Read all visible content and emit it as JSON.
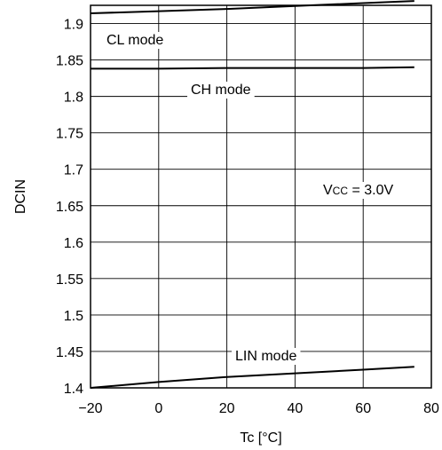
{
  "chart_data": {
    "type": "line",
    "title": "",
    "xlabel": "Tc [°C]",
    "ylabel": "DCIN",
    "xlim": [
      -20,
      80
    ],
    "ylim": [
      1.4,
      1.925
    ],
    "grid": true,
    "x_ticks": [
      -20,
      0,
      20,
      40,
      60,
      80
    ],
    "x_tick_labels": [
      "−20",
      "0",
      "20",
      "40",
      "60",
      "80"
    ],
    "y_ticks": [
      1.4,
      1.45,
      1.5,
      1.55,
      1.6,
      1.65,
      1.7,
      1.75,
      1.8,
      1.85,
      1.9
    ],
    "y_tick_labels": [
      "1.4",
      "1.45",
      "1.5",
      "1.55",
      "1.6",
      "1.65",
      "1.7",
      "1.75",
      "1.8",
      "1.85",
      "1.9"
    ],
    "series": [
      {
        "name": "CL mode",
        "x": [
          -20,
          0,
          20,
          40,
          60,
          75
        ],
        "y": [
          1.914,
          1.917,
          1.92,
          1.924,
          1.928,
          1.931
        ]
      },
      {
        "name": "CH mode",
        "x": [
          -20,
          0,
          20,
          40,
          60,
          75
        ],
        "y": [
          1.838,
          1.838,
          1.839,
          1.839,
          1.839,
          1.84
        ]
      },
      {
        "name": "LIN mode",
        "x": [
          -20,
          0,
          20,
          40,
          60,
          75
        ],
        "y": [
          1.4,
          1.408,
          1.415,
          1.42,
          1.425,
          1.429
        ]
      }
    ],
    "annotation": "Vcc = 3.0V"
  }
}
